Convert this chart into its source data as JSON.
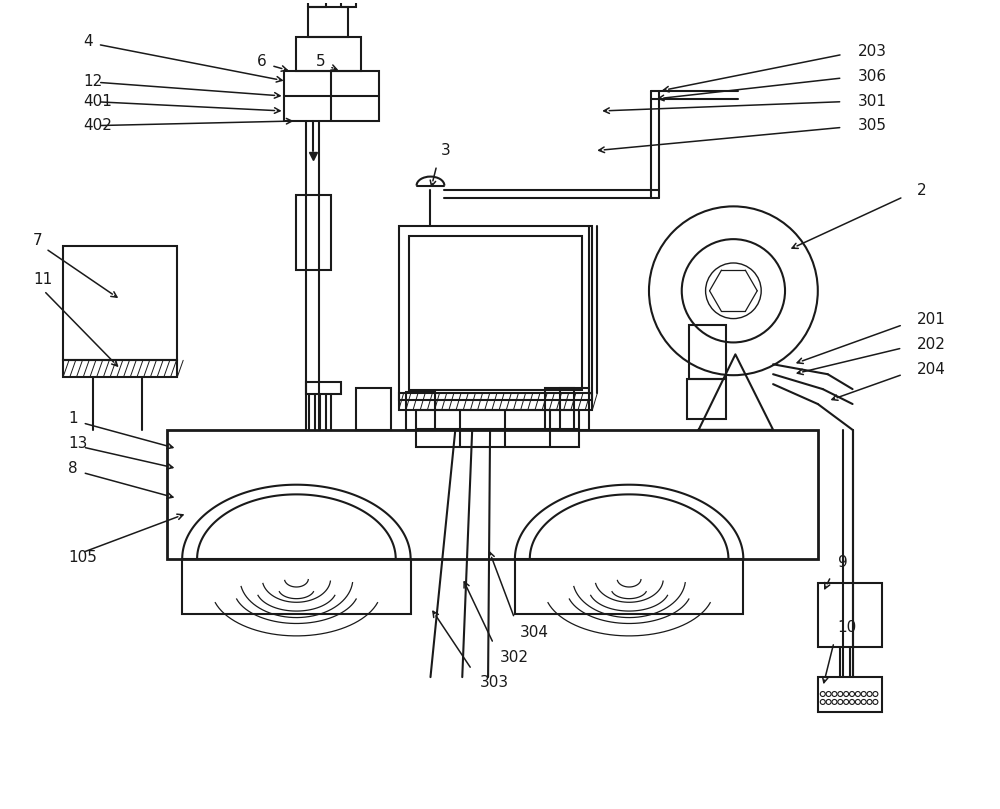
{
  "bg_color": "#ffffff",
  "line_color": "#1a1a1a",
  "text_color": "#1a1a1a",
  "fig_width": 10.0,
  "fig_height": 8.09
}
